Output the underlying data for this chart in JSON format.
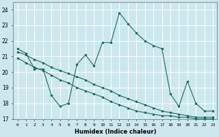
{
  "xlabel": "Humidex (Indice chaleur)",
  "bg_color": "#cce8ec",
  "grid_color": "#ffffff",
  "line_color": "#1a6b5a",
  "xlim": [
    -0.5,
    23.5
  ],
  "ylim": [
    17.0,
    24.5
  ],
  "yticks": [
    17,
    18,
    19,
    20,
    21,
    22,
    23,
    24
  ],
  "xticks": [
    0,
    1,
    2,
    3,
    4,
    5,
    6,
    7,
    8,
    9,
    10,
    11,
    12,
    13,
    14,
    15,
    16,
    17,
    18,
    19,
    20,
    21,
    22,
    23
  ],
  "series1_x": [
    0,
    1,
    2,
    3,
    4,
    5,
    6,
    7,
    8,
    9,
    10,
    11,
    12,
    13,
    14,
    15,
    16,
    17,
    18,
    19,
    20,
    21,
    22,
    23
  ],
  "series1_y": [
    21.5,
    21.2,
    20.2,
    20.2,
    18.5,
    17.8,
    18.0,
    20.5,
    21.1,
    20.4,
    21.9,
    21.9,
    23.8,
    23.1,
    22.5,
    22.0,
    21.7,
    21.5,
    18.6,
    17.8,
    19.4,
    18.0,
    17.5,
    17.5
  ],
  "series2_x": [
    0,
    1,
    2,
    3,
    4,
    5,
    6,
    7,
    8,
    9,
    10,
    11,
    12,
    13,
    14,
    15,
    16,
    17,
    18,
    19,
    20,
    21,
    22,
    23
  ],
  "series2_y": [
    21.3,
    21.1,
    20.8,
    20.6,
    20.3,
    20.1,
    19.9,
    19.7,
    19.5,
    19.2,
    19.0,
    18.8,
    18.5,
    18.3,
    18.1,
    17.9,
    17.7,
    17.5,
    17.4,
    17.3,
    17.2,
    17.1,
    17.1,
    17.1
  ],
  "series3_x": [
    0,
    1,
    2,
    3,
    4,
    5,
    6,
    7,
    8,
    9,
    10,
    11,
    12,
    13,
    14,
    15,
    16,
    17,
    18,
    19,
    20,
    21,
    22,
    23
  ],
  "series3_y": [
    20.9,
    20.6,
    20.3,
    20.1,
    19.8,
    19.5,
    19.3,
    19.0,
    18.8,
    18.6,
    18.4,
    18.1,
    17.9,
    17.7,
    17.5,
    17.4,
    17.3,
    17.2,
    17.2,
    17.1,
    17.1,
    17.0,
    17.0,
    17.0
  ]
}
